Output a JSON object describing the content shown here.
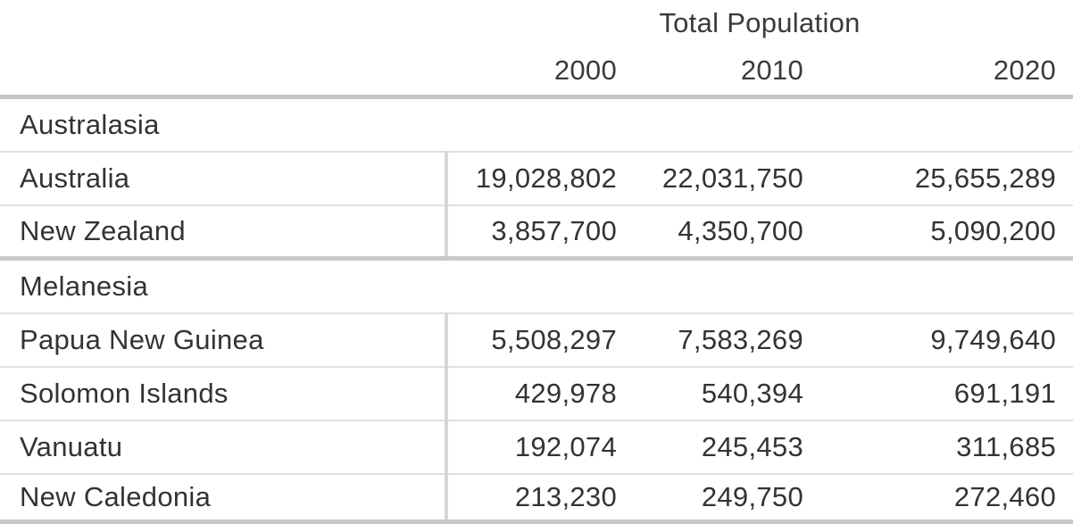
{
  "chart_data": {
    "type": "table",
    "title": "Total Population",
    "columns": [
      "2000",
      "2010",
      "2020"
    ],
    "groups": [
      {
        "name": "Australasia",
        "rows": [
          {
            "label": "Australia",
            "values": [
              "19,028,802",
              "22,031,750",
              "25,655,289"
            ],
            "values_numeric": [
              19028802,
              22031750,
              25655289
            ]
          },
          {
            "label": "New Zealand",
            "values": [
              "3,857,700",
              "4,350,700",
              "5,090,200"
            ],
            "values_numeric": [
              3857700,
              4350700,
              5090200
            ]
          }
        ]
      },
      {
        "name": "Melanesia",
        "rows": [
          {
            "label": "Papua New Guinea",
            "values": [
              "5,508,297",
              "7,583,269",
              "9,749,640"
            ],
            "values_numeric": [
              5508297,
              7583269,
              9749640
            ]
          },
          {
            "label": "Solomon Islands",
            "values": [
              "429,978",
              "540,394",
              "691,191"
            ],
            "values_numeric": [
              429978,
              540394,
              691191
            ]
          },
          {
            "label": "Vanuatu",
            "values": [
              "192,074",
              "245,453",
              "311,685"
            ],
            "values_numeric": [
              192074,
              245453,
              311685
            ]
          },
          {
            "label": "New Caledonia",
            "values": [
              "213,230",
              "249,750",
              "272,460"
            ],
            "values_numeric": [
              213230,
              249750,
              272460
            ]
          }
        ]
      }
    ],
    "layout": {
      "text_color": "#333333",
      "thin_rule_color": "#e0e0e0",
      "thick_rule_color": "#c7c7c7",
      "column_divider_color": "#d7d7d7",
      "background": "#ffffff"
    }
  }
}
